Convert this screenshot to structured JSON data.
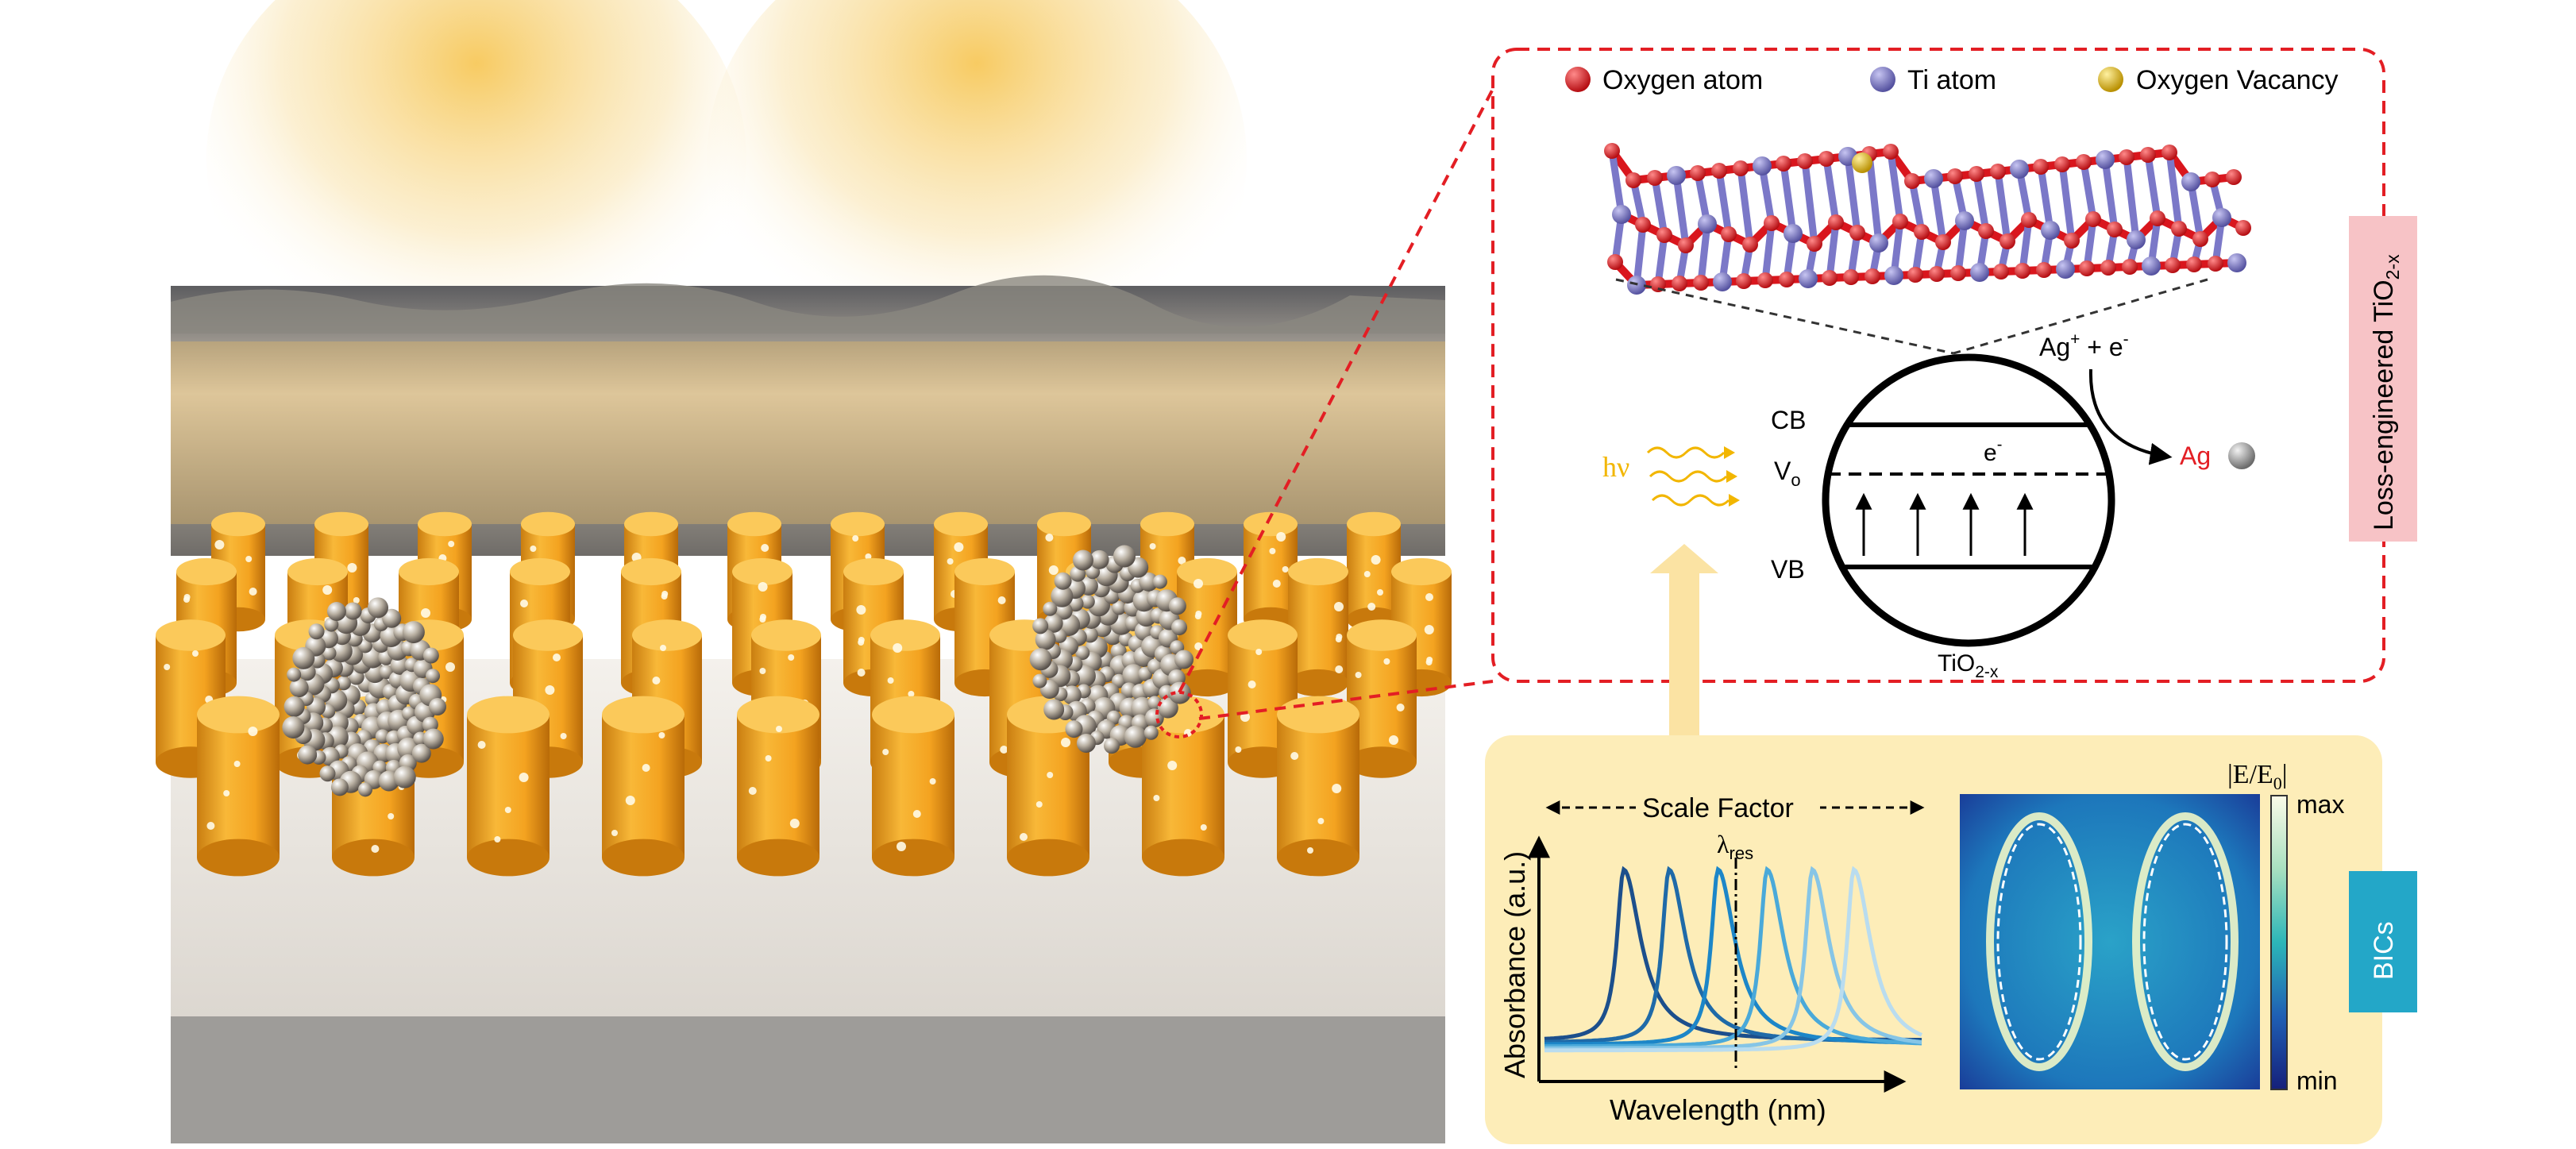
{
  "legend": {
    "oxygen_atom": "Oxygen atom",
    "ti_atom": "Ti atom",
    "oxygen_vacancy": "Oxygen Vacancy"
  },
  "colors": {
    "oxygen": "#e8141c",
    "titanium": "#7b78c8",
    "vacancy": "#e8c21a",
    "dashed_frame": "#e31e24",
    "panel_bg": "#fdedb8",
    "loss_tag_bg": "#f7c3c6",
    "bics_tag_bg": "#23a7c8"
  },
  "band_diagram": {
    "cb": "CB",
    "vo": "V",
    "vo_sub": "o",
    "vb": "VB",
    "electron": "e",
    "electron_sup": "-",
    "material": "TiO",
    "material_sub": "2-x",
    "reaction": "Ag",
    "reaction_sup": "+",
    "reaction_rest": " + e",
    "reaction_rest_sup": "-",
    "product": "Ag",
    "photon": "hν"
  },
  "side_tags": {
    "loss_engineered": "Loss-engineered TiO",
    "loss_engineered_sub": "2-x",
    "bics": "BICs"
  },
  "chart_data": {
    "type": "line",
    "title": "",
    "xlabel": "Wavelength (nm)",
    "ylabel": "Absorbance (a.u.)",
    "scale_factor_label": "Scale Factor",
    "resonance_label": "λ",
    "resonance_label_sub": "res",
    "x": [
      0,
      100
    ],
    "series": [
      {
        "peak": 21,
        "color": "#1c4f8c"
      },
      {
        "peak": 33,
        "color": "#1f6aa8"
      },
      {
        "peak": 46,
        "color": "#1c86c8"
      },
      {
        "peak": 59,
        "color": "#4aa9d9"
      },
      {
        "peak": 71,
        "color": "#86c5e6"
      },
      {
        "peak": 82,
        "color": "#b9dcef"
      }
    ]
  },
  "field_map": {
    "label": "|E/E",
    "label_sub": "0",
    "label_end": "|",
    "max": "max",
    "min": "min"
  }
}
